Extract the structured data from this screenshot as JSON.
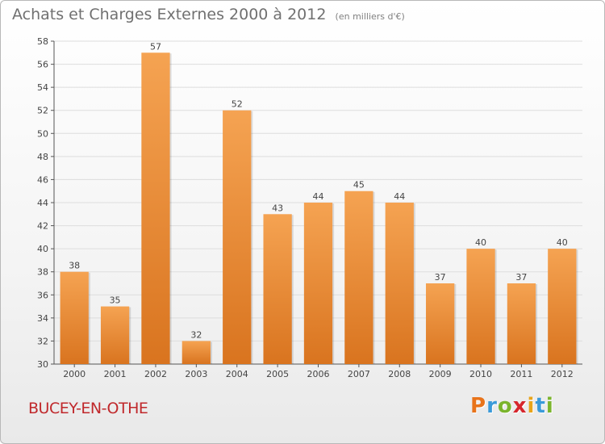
{
  "header": {
    "title": "Achats et Charges Externes 2000 à 2012",
    "unit_note": "(en milliers d'€)"
  },
  "footer": {
    "commune": "BUCEY-EN-OTHE",
    "brand_letters": [
      "P",
      "r",
      "o",
      "x",
      "i",
      "t",
      "i"
    ],
    "brand_colors": [
      "#e8731a",
      "#3a9ad9",
      "#7ab42c",
      "#d6262d",
      "#e8a41a",
      "#3a9ad9",
      "#7ab42c"
    ]
  },
  "colors": {
    "bar_light": "#f5a352",
    "bar_dark": "#d9741f",
    "grid": "#dddddd",
    "axis": "#555555",
    "text": "#444444"
  },
  "chart_data": {
    "type": "bar",
    "categories": [
      "2000",
      "2001",
      "2002",
      "2003",
      "2004",
      "2005",
      "2006",
      "2007",
      "2008",
      "2009",
      "2010",
      "2011",
      "2012"
    ],
    "values": [
      38,
      35,
      57,
      32,
      52,
      43,
      44,
      45,
      44,
      37,
      40,
      37,
      40
    ],
    "ylim": [
      30,
      58
    ],
    "yticks": [
      30,
      32,
      34,
      36,
      38,
      40,
      42,
      44,
      46,
      48,
      50,
      52,
      54,
      56,
      58
    ],
    "data_labels": [
      "38",
      "35",
      "57",
      "32",
      "52",
      "43",
      "44",
      "45",
      "44",
      "37",
      "40",
      "37",
      "40"
    ],
    "grid": true,
    "xlabel": "",
    "ylabel": ""
  }
}
